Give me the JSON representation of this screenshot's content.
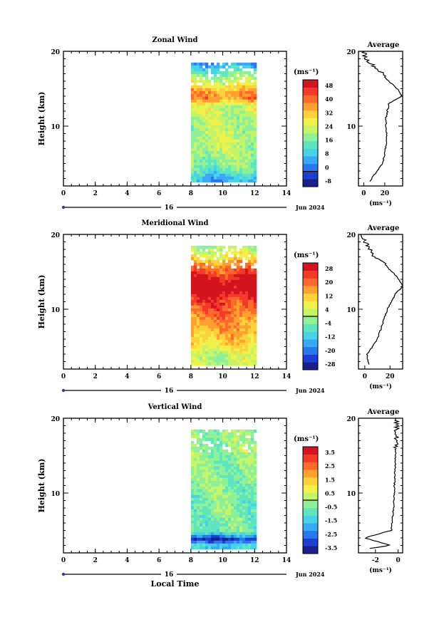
{
  "figure": {
    "x_tick_labels": [
      "0",
      "2",
      "4",
      "6",
      "8",
      "10",
      "12",
      "14"
    ],
    "date_day": "16",
    "date_month_year": "Jun 2024",
    "x_axis_label": "Local Time",
    "y_axis_label": "Height (km)",
    "y_tick_labels": [
      "20",
      "10"
    ],
    "unit_label": "(ms⁻¹)",
    "average_title": "Average"
  },
  "colorscale": [
    "#1a1f8a",
    "#1d3fd0",
    "#2a78f0",
    "#3aa9f5",
    "#46d3e8",
    "#5fe6c0",
    "#8ff09a",
    "#c4f46a",
    "#eef24a",
    "#ffd23a",
    "#ffa030",
    "#ff6a2a",
    "#f33a2a",
    "#d2141f"
  ],
  "panels": [
    {
      "title": "Zonal Wind",
      "colorbar_ticks": [
        "48",
        "40",
        "32",
        "24",
        "16",
        "8",
        "0",
        "-8"
      ],
      "avg_x_ticks": [
        "0",
        "20"
      ],
      "avg_xlim": [
        -5,
        37
      ]
    },
    {
      "title": "Meridional Wind",
      "colorbar_ticks": [
        "28",
        "20",
        "12",
        "4",
        "-4",
        "-12",
        "-20",
        "-28"
      ],
      "avg_x_ticks": [
        "0",
        "20"
      ],
      "avg_xlim": [
        -5,
        30
      ]
    },
    {
      "title": "Vertical Wind",
      "colorbar_ticks": [
        "3.5",
        "2.5",
        "1.5",
        "0.5",
        "-0.5",
        "-1.5",
        "-2.5",
        "-3.5"
      ],
      "avg_x_ticks": [
        "-2",
        "0"
      ],
      "avg_xlim": [
        -3.5,
        0.4
      ]
    }
  ],
  "chart_data": [
    {
      "type": "heatmap",
      "title": "Zonal Wind",
      "xlabel": "Local Time",
      "ylabel": "Height (km)",
      "xlim": [
        0,
        14
      ],
      "ylim": [
        2,
        20
      ],
      "data_extent_x": [
        8,
        12
      ],
      "data_extent_y": [
        2.5,
        18.5
      ],
      "colorbar_range": [
        -8,
        48
      ],
      "profile_anchor_values": [
        {
          "h": 2.5,
          "v": 5
        },
        {
          "h": 5,
          "v": 18
        },
        {
          "h": 8,
          "v": 22
        },
        {
          "h": 11,
          "v": 21
        },
        {
          "h": 13,
          "v": 24
        },
        {
          "h": 14,
          "v": 36
        },
        {
          "h": 15,
          "v": 32
        },
        {
          "h": 16,
          "v": 24
        },
        {
          "h": 17,
          "v": 18
        },
        {
          "h": 18,
          "v": 10
        },
        {
          "h": 19,
          "v": 2
        },
        {
          "h": 20,
          "v": 0
        }
      ]
    },
    {
      "type": "heatmap",
      "title": "Meridional Wind",
      "xlabel": "Local Time",
      "ylabel": "Height (km)",
      "xlim": [
        0,
        14
      ],
      "ylim": [
        2,
        20
      ],
      "data_extent_x": [
        8,
        12
      ],
      "data_extent_y": [
        2.5,
        18.5
      ],
      "colorbar_range": [
        -28,
        28
      ],
      "profile_anchor_values": [
        {
          "h": 2.5,
          "v": 3
        },
        {
          "h": 4,
          "v": 2
        },
        {
          "h": 6,
          "v": 10
        },
        {
          "h": 8,
          "v": 14
        },
        {
          "h": 10,
          "v": 18
        },
        {
          "h": 12,
          "v": 24
        },
        {
          "h": 13,
          "v": 30
        },
        {
          "h": 14,
          "v": 27
        },
        {
          "h": 16,
          "v": 16
        },
        {
          "h": 17,
          "v": 8
        },
        {
          "h": 18.5,
          "v": 2
        },
        {
          "h": 20,
          "v": -2
        }
      ]
    },
    {
      "type": "heatmap",
      "title": "Vertical Wind",
      "xlabel": "Local Time",
      "ylabel": "Height (km)",
      "xlim": [
        0,
        14
      ],
      "ylim": [
        2,
        20
      ],
      "data_extent_x": [
        8,
        12
      ],
      "data_extent_y": [
        2.5,
        18.5
      ],
      "colorbar_range": [
        -3.5,
        3.5
      ],
      "profile_anchor_values": [
        {
          "h": 2.5,
          "v": -3.0
        },
        {
          "h": 3,
          "v": -0.6
        },
        {
          "h": 4,
          "v": -3.0
        },
        {
          "h": 5,
          "v": -0.6
        },
        {
          "h": 8,
          "v": -0.4
        },
        {
          "h": 12,
          "v": -0.3
        },
        {
          "h": 16,
          "v": -0.2
        },
        {
          "h": 20,
          "v": -0.1
        }
      ]
    }
  ]
}
